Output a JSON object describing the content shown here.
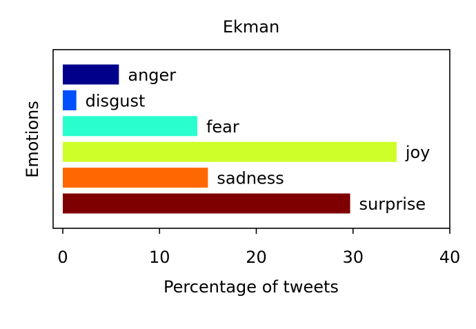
{
  "chart_data": {
    "type": "bar",
    "orientation": "horizontal",
    "title": "Ekman",
    "xlabel": "Percentage of tweets",
    "ylabel": "Emotions",
    "categories": [
      "anger",
      "disgust",
      "fear",
      "joy",
      "sadness",
      "surprise"
    ],
    "values": [
      5.8,
      1.4,
      13.9,
      34.5,
      15.0,
      29.7
    ],
    "colors": [
      "#00008b",
      "#0050ff",
      "#29ffce",
      "#ceff29",
      "#ff6800",
      "#7f0000"
    ],
    "xlim": [
      -1,
      40
    ],
    "xticks": [
      0,
      10,
      20,
      30,
      40
    ],
    "xtick_labels": [
      "0",
      "10",
      "20",
      "30",
      "40"
    ],
    "grid": false,
    "bar_labels_shown": true
  }
}
